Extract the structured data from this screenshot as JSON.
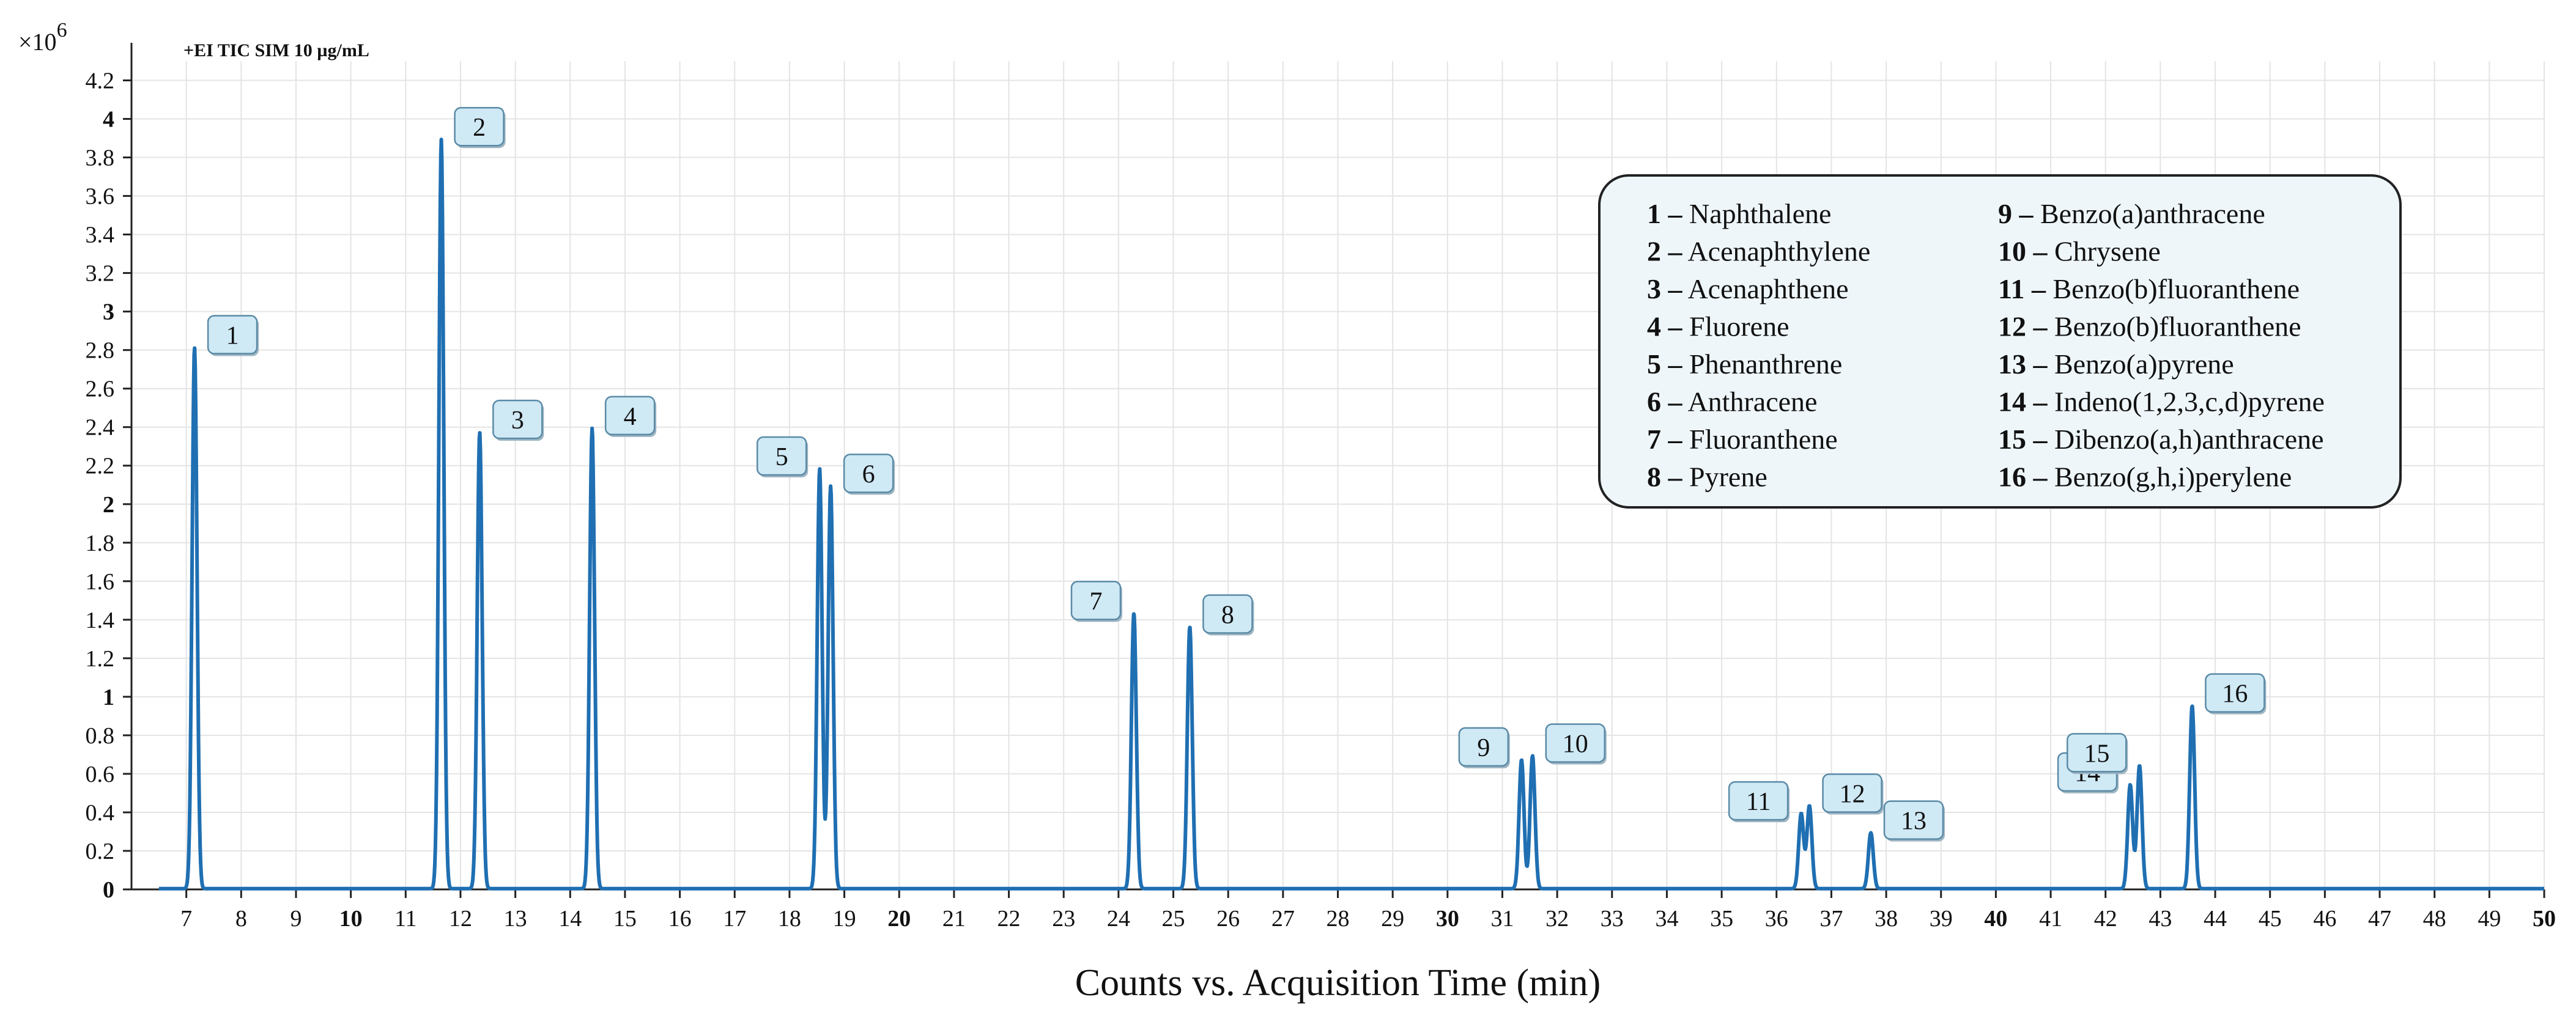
{
  "chart_data": {
    "type": "line",
    "title": "+EI TIC SIM 10 µg/mL",
    "y_exponent_label": "×10",
    "y_exponent_power": "6",
    "xlabel": "Counts vs. Acquisition Time (min)",
    "ylabel": "",
    "xlim": [
      6,
      50
    ],
    "ylim": [
      0,
      4.3
    ],
    "x_ticks": [
      7,
      8,
      9,
      10,
      11,
      12,
      13,
      14,
      15,
      16,
      17,
      18,
      19,
      20,
      21,
      22,
      23,
      24,
      25,
      26,
      27,
      28,
      29,
      30,
      31,
      32,
      33,
      34,
      35,
      36,
      37,
      38,
      39,
      40,
      41,
      42,
      43,
      44,
      45,
      46,
      47,
      48,
      49,
      50
    ],
    "x_ticks_bold": [
      10,
      20,
      30,
      40,
      50
    ],
    "y_ticks": [
      0,
      0.2,
      0.4,
      0.6,
      0.8,
      1,
      1.2,
      1.4,
      1.6,
      1.8,
      2,
      2.2,
      2.4,
      2.6,
      2.8,
      3,
      3.2,
      3.4,
      3.6,
      3.8,
      4,
      4.2
    ],
    "y_ticks_bold": [
      0,
      1,
      2,
      3,
      4
    ],
    "grid": true,
    "series": [
      {
        "name": "TIC",
        "color": "#1f6fb2",
        "peaks": [
          {
            "label": "1",
            "x": 7.15,
            "y": 2.81
          },
          {
            "label": "2",
            "x": 11.65,
            "y": 3.89
          },
          {
            "label": "3",
            "x": 12.35,
            "y": 2.37
          },
          {
            "label": "4",
            "x": 14.4,
            "y": 2.39
          },
          {
            "label": "5",
            "x": 18.55,
            "y": 2.18
          },
          {
            "label": "6",
            "x": 18.75,
            "y": 2.09
          },
          {
            "label": "7",
            "x": 24.28,
            "y": 1.43
          },
          {
            "label": "8",
            "x": 25.3,
            "y": 1.36
          },
          {
            "label": "9",
            "x": 31.35,
            "y": 0.67
          },
          {
            "label": "10",
            "x": 31.55,
            "y": 0.69
          },
          {
            "label": "11",
            "x": 36.45,
            "y": 0.39
          },
          {
            "label": "12",
            "x": 36.6,
            "y": 0.43
          },
          {
            "label": "13",
            "x": 37.72,
            "y": 0.29
          },
          {
            "label": "14",
            "x": 42.45,
            "y": 0.54
          },
          {
            "label": "15",
            "x": 42.62,
            "y": 0.64
          },
          {
            "label": "16",
            "x": 43.58,
            "y": 0.95
          }
        ]
      }
    ],
    "legend": [
      {
        "num": "1",
        "name": "Naphthalene"
      },
      {
        "num": "2",
        "name": "Acenaphthylene"
      },
      {
        "num": "3",
        "name": "Acenaphthene"
      },
      {
        "num": "4",
        "name": "Fluorene"
      },
      {
        "num": "5",
        "name": "Phenanthrene"
      },
      {
        "num": "6",
        "name": "Anthracene"
      },
      {
        "num": "7",
        "name": "Fluoranthene"
      },
      {
        "num": "8",
        "name": "Pyrene"
      },
      {
        "num": "9",
        "name": "Benzo(a)anthracene"
      },
      {
        "num": "10",
        "name": "Chrysene"
      },
      {
        "num": "11",
        "name": "Benzo(b)fluoranthene"
      },
      {
        "num": "12",
        "name": "Benzo(b)fluoranthene"
      },
      {
        "num": "13",
        "name": "Benzo(a)pyrene"
      },
      {
        "num": "14",
        "name": "Indeno(1,2,3,c,d)pyrene"
      },
      {
        "num": "15",
        "name": "Dibenzo(a,h)anthracene"
      },
      {
        "num": "16",
        "name": "Benzo(g,h,i)perylene"
      }
    ],
    "legend_dash": " – ",
    "legend_position": "top-right"
  }
}
